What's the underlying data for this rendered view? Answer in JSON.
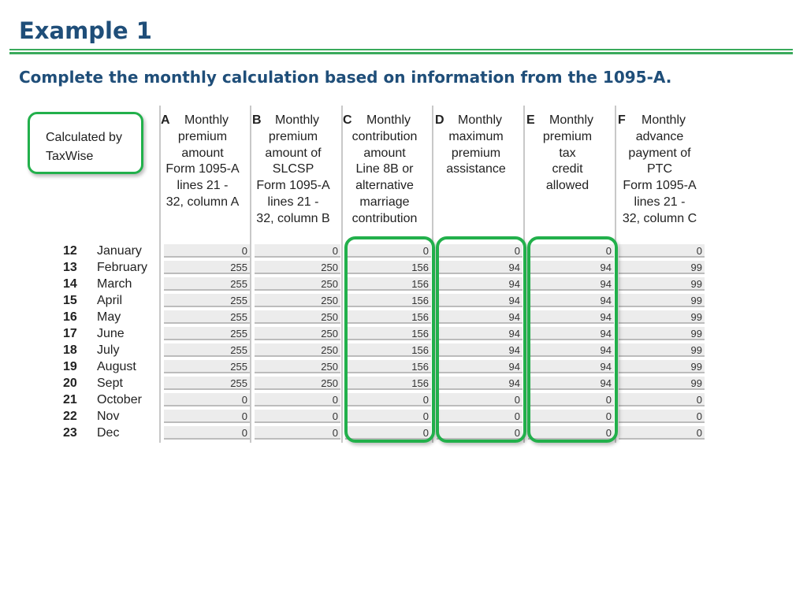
{
  "slide": {
    "title": "Example 1",
    "subtitle": "Complete the monthly calculation based on information from the 1095-A."
  },
  "callout": {
    "line1": "Calculated by",
    "line2": "TaxWise"
  },
  "columns": [
    {
      "letter": "A",
      "lines": [
        "Monthly",
        "premium",
        "amount",
        "Form 1095-A",
        "lines 21 -",
        "32, column A"
      ]
    },
    {
      "letter": "B",
      "lines": [
        "Monthly",
        "premium",
        "amount of",
        "SLCSP",
        "Form 1095-A",
        "lines 21 -",
        "32, column B"
      ]
    },
    {
      "letter": "C",
      "lines": [
        "Monthly",
        "contribution",
        "amount",
        "Line 8B or",
        "alternative",
        "marriage",
        "contribution"
      ]
    },
    {
      "letter": "D",
      "lines": [
        "Monthly",
        "maximum",
        "premium",
        "assistance"
      ]
    },
    {
      "letter": "E",
      "lines": [
        "Monthly",
        "premium",
        "tax",
        "credit",
        "allowed"
      ]
    },
    {
      "letter": "F",
      "lines": [
        "Monthly",
        "advance",
        "payment of",
        "PTC",
        "Form 1095-A",
        "lines 21 -",
        "32, column C"
      ]
    }
  ],
  "rows": [
    {
      "num": "12",
      "month": "January",
      "values": [
        "0",
        "0",
        "0",
        "0",
        "0",
        "0"
      ]
    },
    {
      "num": "13",
      "month": "February",
      "values": [
        "255",
        "250",
        "156",
        "94",
        "94",
        "99"
      ]
    },
    {
      "num": "14",
      "month": "March",
      "values": [
        "255",
        "250",
        "156",
        "94",
        "94",
        "99"
      ]
    },
    {
      "num": "15",
      "month": "April",
      "values": [
        "255",
        "250",
        "156",
        "94",
        "94",
        "99"
      ]
    },
    {
      "num": "16",
      "month": "May",
      "values": [
        "255",
        "250",
        "156",
        "94",
        "94",
        "99"
      ]
    },
    {
      "num": "17",
      "month": "June",
      "values": [
        "255",
        "250",
        "156",
        "94",
        "94",
        "99"
      ]
    },
    {
      "num": "18",
      "month": "July",
      "values": [
        "255",
        "250",
        "156",
        "94",
        "94",
        "99"
      ]
    },
    {
      "num": "19",
      "month": "August",
      "values": [
        "255",
        "250",
        "156",
        "94",
        "94",
        "99"
      ]
    },
    {
      "num": "20",
      "month": "Sept",
      "values": [
        "255",
        "250",
        "156",
        "94",
        "94",
        "99"
      ]
    },
    {
      "num": "21",
      "month": "October",
      "values": [
        "0",
        "0",
        "0",
        "0",
        "0",
        "0"
      ]
    },
    {
      "num": "22",
      "month": "Nov",
      "values": [
        "0",
        "0",
        "0",
        "0",
        "0",
        "0"
      ]
    },
    {
      "num": "23",
      "month": "Dec",
      "values": [
        "0",
        "0",
        "0",
        "0",
        "0",
        "0"
      ]
    }
  ],
  "colors": {
    "title": "#1f4e79",
    "accent_green": "#22b04b",
    "rule_green": "#3aaa5c"
  }
}
